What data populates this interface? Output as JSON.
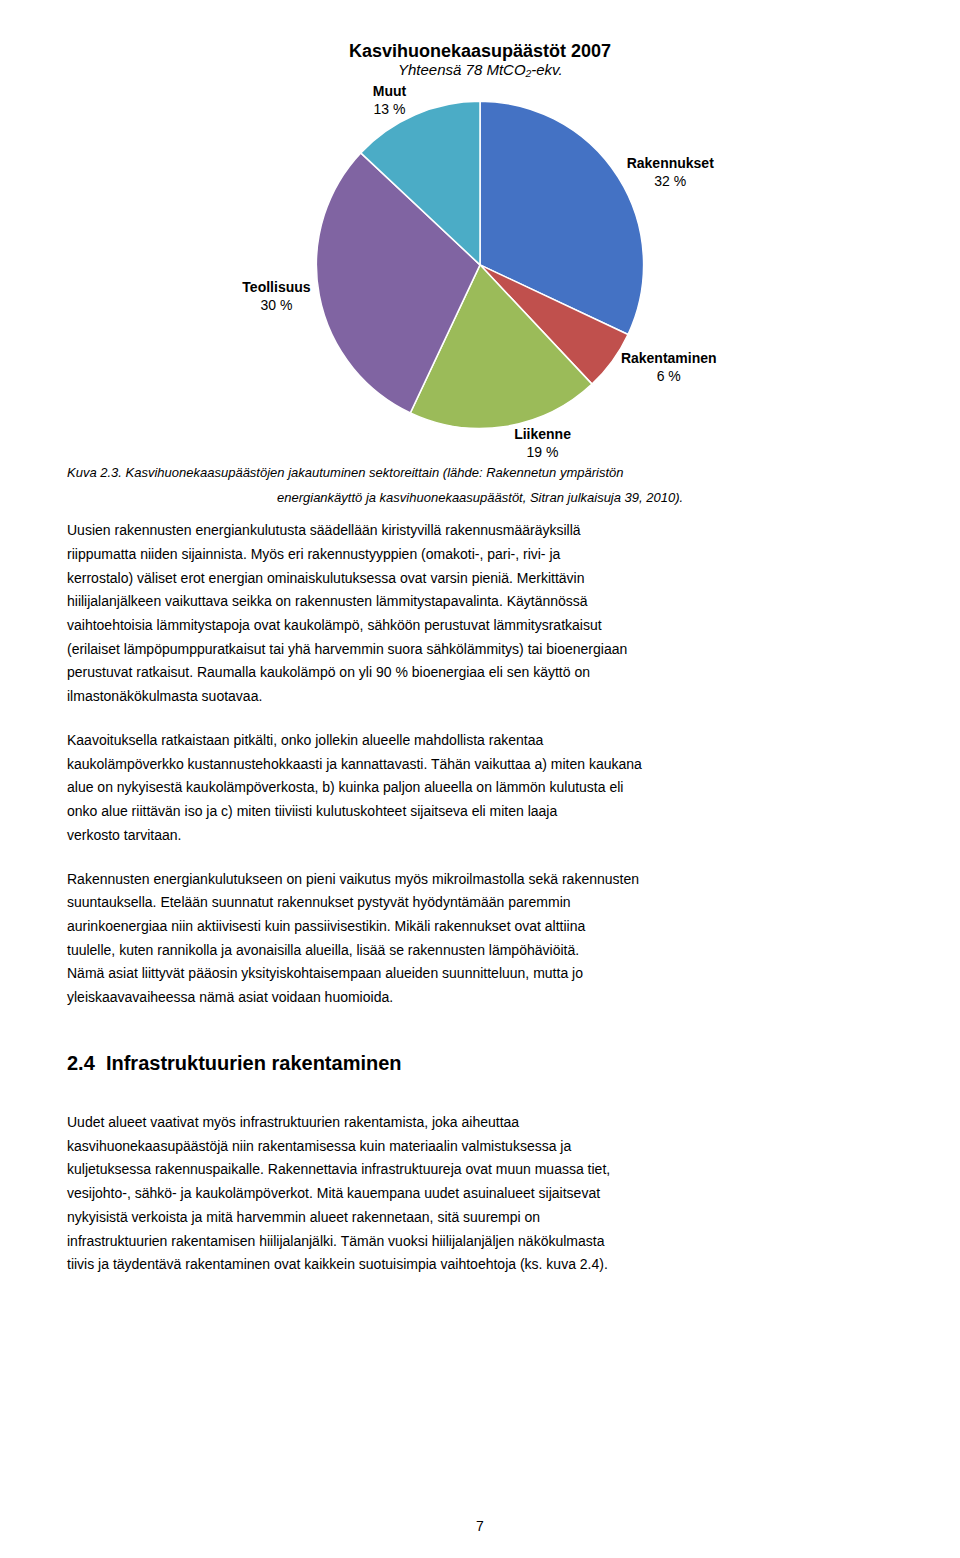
{
  "chart_data": {
    "type": "pie",
    "title": "Kasvihuonekaasupäästöt 2007",
    "subtitle": "Yhteensä 78 MtCO₂-ekv.",
    "categories": [
      "Rakennukset",
      "Rakentaminen",
      "Liikenne",
      "Teollisuus",
      "Muut"
    ],
    "values": [
      32,
      6,
      19,
      30,
      13
    ],
    "value_labels": [
      "32 %",
      "6 %",
      "19 %",
      "30 %",
      "13 %"
    ],
    "colors": [
      "#4472C4",
      "#C0504D",
      "#9BBB59",
      "#8064A2",
      "#4BACC6"
    ],
    "annotations": [
      "Kuva 2.3. Kasvihuonekaasupäästöjen jakautuminen sektoreittain (lähde: Rakennetun ympäristön",
      "energiankäyttö ja kasvihuonekaasupäästöt, Sitran julkaisuja 39, 2010).",
      "Uusien rakennusten energiankulutusta säädellään kiristyvillä rakennusmääräyksillä riippumatta niiden sijainnista. Myös eri rakennustyyppien (omakoti-, pari-, rivi- ja kerrostalo) väliset erot energian ominaiskulutuksessa ovat varsin pieniä. Merkittävin hiilijalanjälkeen vaikuttava seikka on rakennusten lämmitystapavalinta. Käytännössä vaihtoehtoisia lämmitystapoja ovat kaukolämpö, sähköön perustuvat lämmitysratkaisut (erilaiset lämpöpumppuratkaisut tai yhä harvemmin suora sähkölämmitys) tai bioenergiaan perustuvat ratkaisut. Raumalla kaukolämpö on yli 90 % bioenergiaa eli sen käyttö on ilmastonäkökulmasta suotavaa.",
      "Kaavoituksella ratkaistaan pitkälti, onko jollekin alueelle mahdollista rakentaa kaukolämpöverkko kustannustehokkaasti ja kannattavasti. Tähän vaikuttaa a) miten kaukana alue on nykyisestä kaukolämpöverkosta, b) kuinka paljon alueella on lämmön kulutusta eli onko alue riittävän iso ja c) miten tiiviisti kulutuskohteet sijaitseva eli miten laaja verkosto tarvitaan.",
      "Rakennusten energiankulutukseen on pieni vaikutus myös mikroilmastolla sekä rakennusten suuntauksella. Etelään suunnatut rakennukset pystyvät hyödyntämään paremmin aurinkoenergiaa niin aktiivisesti kuin passiivisestikin. Mikäli rakennukset ovat alttiina tuulelle, kuten rannikolla ja avonaisilla alueilla, lisää se rakennusten lämpöhäviöitä. Nämä asiat liittyvät pääosin yksityiskohtaisempaan alueiden suunnitteluun, mutta jo yleiskaavavaiheessa nämä asiat voidaan huomioida.",
      "2.4  Infrastruktuurien rakentaminen",
      "Uudet alueet vaativat myös infrastruktuurien rakentamista, joka aiheuttaa kasvihuonekaasupäästöjä niin rakentamisessa kuin materiaalin valmistuksessa ja kuljetuksessa rakennuspaikalle. Rakennettavia infrastruktuureja ovat muun muassa tiet, vesijohto-, sähkö- ja kaukolämpöverkot. Mitä kauempana uudet asuinalueet sijaitsevat nykyisistä verkoista ja mitä harvemmin alueet rakennetaan, sitä suurempi on infrastruktuurien rakentamisen hiilijalanjälki. Tämän vuoksi hiilijalanjäljen näkökulmasta tiivis ja täydentävä rakentaminen ovat kaikkein suotuisimpia vaihtoehtoja (ks. kuva 2.4).",
      "7"
    ]
  }
}
